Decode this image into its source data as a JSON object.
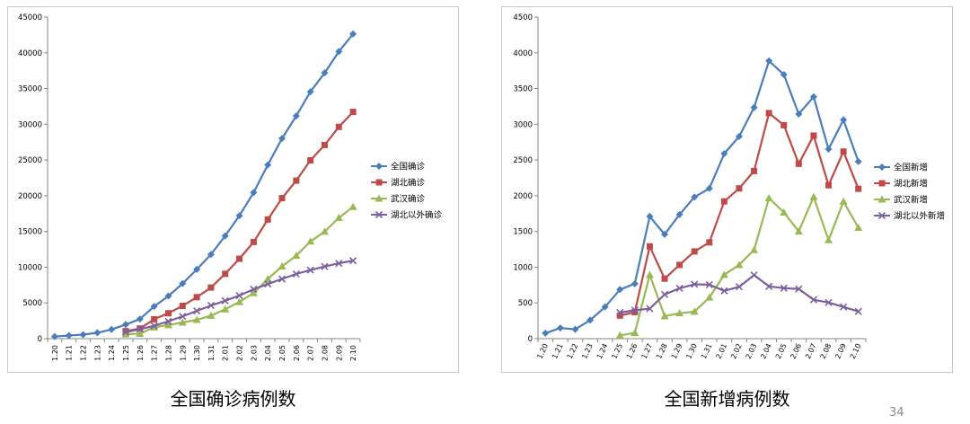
{
  "page_number": "34",
  "chart_data": [
    {
      "type": "line",
      "title": "全国确诊病例数",
      "categories": [
        "1.20",
        "1.21",
        "1.22",
        "1.23",
        "1.24",
        "1.25",
        "1.26",
        "1.27",
        "1.28",
        "1.29",
        "1.30",
        "1.31",
        "2.01",
        "2.02",
        "2.03",
        "2.04",
        "2.05",
        "2.06",
        "2.07",
        "2.08",
        "2.09",
        "2.10"
      ],
      "ylim": [
        0,
        45000
      ],
      "yticks": [
        0,
        5000,
        10000,
        15000,
        20000,
        25000,
        30000,
        35000,
        40000,
        45000
      ],
      "ytick_labels": [
        "0",
        "5000",
        "10000",
        "15000",
        "20000",
        "25000",
        "30000",
        "35000",
        "40000",
        "45000"
      ],
      "legend_position": "right",
      "series": [
        {
          "name": "全国确诊",
          "color": "#4a7ebb",
          "marker": "diamond",
          "values": [
            291,
            440,
            571,
            830,
            1287,
            1975,
            2744,
            4515,
            5974,
            7711,
            9692,
            11791,
            14380,
            17205,
            20438,
            24324,
            28018,
            31161,
            34546,
            37198,
            40171,
            42638
          ]
        },
        {
          "name": "湖北确诊",
          "color": "#be4b48",
          "marker": "square",
          "values": [
            null,
            null,
            null,
            null,
            null,
            1052,
            1423,
            2714,
            3554,
            4586,
            5806,
            7153,
            9074,
            11177,
            13522,
            16678,
            19665,
            22112,
            24953,
            27100,
            29631,
            31728
          ]
        },
        {
          "name": "武汉确诊",
          "color": "#98b954",
          "marker": "triangle",
          "values": [
            null,
            null,
            null,
            null,
            null,
            618,
            698,
            1590,
            1905,
            2261,
            2639,
            3215,
            4109,
            5142,
            6384,
            8351,
            10117,
            11618,
            13603,
            14982,
            16902,
            18454
          ]
        },
        {
          "name": "湖北以外确诊",
          "color": "#7d5fa0",
          "marker": "x",
          "values": [
            null,
            null,
            null,
            null,
            null,
            923,
            1321,
            1801,
            2420,
            3125,
            3886,
            4638,
            5306,
            6028,
            6916,
            7646,
            8353,
            9049,
            9593,
            10098,
            10540,
            10910
          ]
        }
      ]
    },
    {
      "type": "line",
      "title": "全国新增病例数",
      "categories": [
        "1.20",
        "1.21",
        "1.22",
        "1.23",
        "1.24",
        "1.25",
        "1.26",
        "1.27",
        "1.28",
        "1.29",
        "1.30",
        "1.31",
        "2.01",
        "2.02",
        "2.03",
        "2.04",
        "2.05",
        "2.06",
        "2.07",
        "2.08",
        "2.09",
        "2.10"
      ],
      "ylim": [
        0,
        4500
      ],
      "yticks": [
        0,
        500,
        1000,
        1500,
        2000,
        2500,
        3000,
        3500,
        4000,
        4500
      ],
      "ytick_labels": [
        "0",
        "500",
        "1000",
        "1500",
        "2000",
        "2500",
        "3000",
        "3500",
        "4000",
        "4500"
      ],
      "legend_position": "right",
      "series": [
        {
          "name": "全国新增",
          "color": "#4a7ebb",
          "marker": "diamond",
          "values": [
            77,
            149,
            131,
            259,
            444,
            688,
            769,
            1711,
            1459,
            1737,
            1981,
            2102,
            2590,
            2829,
            3235,
            3887,
            3694,
            3143,
            3385,
            2652,
            3062,
            2478
          ]
        },
        {
          "name": "湖北新增",
          "color": "#be4b48",
          "marker": "square",
          "values": [
            null,
            null,
            null,
            null,
            null,
            323,
            371,
            1291,
            840,
            1032,
            1220,
            1347,
            1921,
            2103,
            2345,
            3156,
            2987,
            2447,
            2841,
            2147,
            2618,
            2097
          ]
        },
        {
          "name": "武汉新增",
          "color": "#98b954",
          "marker": "triangle",
          "values": [
            null,
            null,
            null,
            null,
            null,
            46,
            80,
            892,
            315,
            356,
            378,
            576,
            894,
            1033,
            1242,
            1967,
            1766,
            1501,
            1985,
            1379,
            1920,
            1552
          ]
        },
        {
          "name": "湖北以外新增",
          "color": "#7d5fa0",
          "marker": "x",
          "values": [
            null,
            null,
            null,
            null,
            null,
            365,
            398,
            420,
            619,
            705,
            761,
            755,
            669,
            726,
            890,
            731,
            707,
            696,
            544,
            505,
            444,
            381
          ]
        }
      ]
    }
  ]
}
